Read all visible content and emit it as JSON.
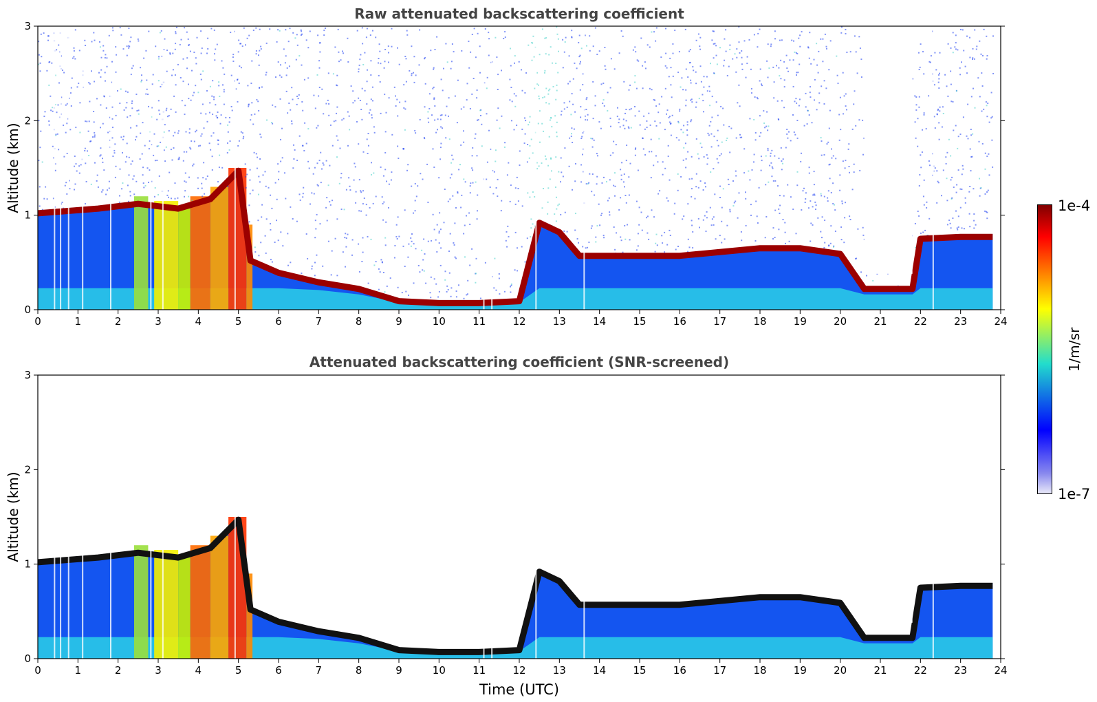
{
  "chart_data": [
    {
      "type": "heatmap",
      "title": "Raw attenuated backscattering coefficient",
      "xlabel": "",
      "ylabel": "Altitude (km)",
      "xlim": [
        0,
        24
      ],
      "ylim": [
        0,
        3
      ],
      "xticks": [
        "0",
        "1",
        "2",
        "3",
        "4",
        "5",
        "6",
        "7",
        "8",
        "9",
        "10",
        "11",
        "12",
        "13",
        "14",
        "15",
        "16",
        "17",
        "18",
        "19",
        "20",
        "21",
        "22",
        "23",
        "24"
      ],
      "yticks": [
        "0",
        "1",
        "2",
        "3"
      ],
      "screened": false,
      "layer_top_km": [
        [
          0,
          1.05
        ],
        [
          1.5,
          1.1
        ],
        [
          2.5,
          1.15
        ],
        [
          3.5,
          1.1
        ],
        [
          4.3,
          1.2
        ],
        [
          5,
          1.5
        ],
        [
          5.3,
          0.55
        ],
        [
          6,
          0.42
        ],
        [
          7,
          0.32
        ],
        [
          8,
          0.25
        ],
        [
          9,
          0.12
        ],
        [
          10,
          0.1
        ],
        [
          11,
          0.1
        ],
        [
          12,
          0.12
        ],
        [
          12.5,
          0.95
        ],
        [
          13,
          0.85
        ],
        [
          13.5,
          0.6
        ],
        [
          14,
          0.6
        ],
        [
          16,
          0.6
        ],
        [
          18,
          0.68
        ],
        [
          19,
          0.68
        ],
        [
          20,
          0.62
        ],
        [
          20.6,
          0.25
        ],
        [
          21.5,
          0.25
        ],
        [
          21.8,
          0.25
        ],
        [
          22,
          0.78
        ],
        [
          23,
          0.8
        ],
        [
          23.8,
          0.8
        ]
      ]
    },
    {
      "type": "heatmap",
      "title": "Attenuated backscattering coefficient (SNR-screened)",
      "xlabel": "Time (UTC)",
      "ylabel": "Altitude (km)",
      "xlim": [
        0,
        24
      ],
      "ylim": [
        0,
        3
      ],
      "xticks": [
        "0",
        "1",
        "2",
        "3",
        "4",
        "5",
        "6",
        "7",
        "8",
        "9",
        "10",
        "11",
        "12",
        "13",
        "14",
        "15",
        "16",
        "17",
        "18",
        "19",
        "20",
        "21",
        "22",
        "23",
        "24"
      ],
      "yticks": [
        "0",
        "1",
        "2",
        "3"
      ],
      "screened": true,
      "layer_top_km": [
        [
          0,
          1.05
        ],
        [
          1.5,
          1.1
        ],
        [
          2.5,
          1.15
        ],
        [
          3.5,
          1.1
        ],
        [
          4.3,
          1.2
        ],
        [
          5,
          1.5
        ],
        [
          5.3,
          0.55
        ],
        [
          6,
          0.42
        ],
        [
          7,
          0.32
        ],
        [
          8,
          0.25
        ],
        [
          9,
          0.12
        ],
        [
          10,
          0.1
        ],
        [
          11,
          0.1
        ],
        [
          12,
          0.12
        ],
        [
          12.5,
          0.95
        ],
        [
          13,
          0.85
        ],
        [
          13.5,
          0.6
        ],
        [
          14,
          0.6
        ],
        [
          16,
          0.6
        ],
        [
          18,
          0.68
        ],
        [
          19,
          0.68
        ],
        [
          20,
          0.62
        ],
        [
          20.6,
          0.25
        ],
        [
          21.5,
          0.25
        ],
        [
          21.8,
          0.25
        ],
        [
          22,
          0.78
        ],
        [
          23,
          0.8
        ],
        [
          23.8,
          0.8
        ]
      ]
    }
  ],
  "colorbar": {
    "max_label": "1e-4",
    "min_label": "1e-7",
    "unit": "1/m/sr",
    "scale": "log"
  }
}
